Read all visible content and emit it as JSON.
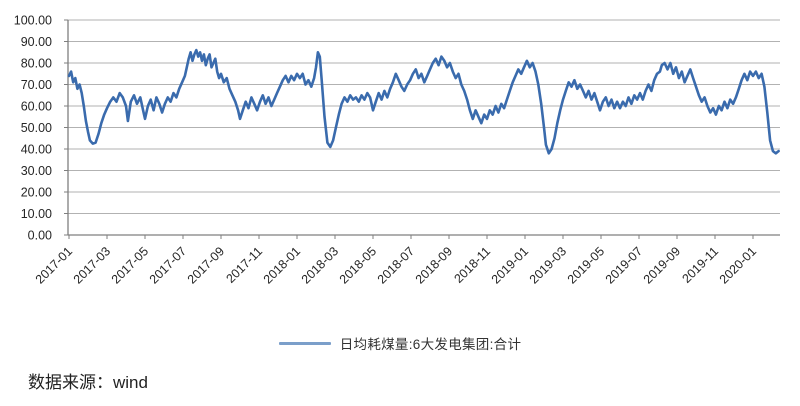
{
  "chart_data": {
    "type": "line",
    "legend": [
      "日均耗煤量:6大发电集团:合计"
    ],
    "legend_position": "bottom",
    "grid": "horizontal",
    "ylim": [
      0,
      100
    ],
    "y_ticks": [
      [
        0,
        "0.00"
      ],
      [
        10,
        "10.00"
      ],
      [
        20,
        "20.00"
      ],
      [
        30,
        "30.00"
      ],
      [
        40,
        "40.00"
      ],
      [
        50,
        "50.00"
      ],
      [
        60,
        "60.00"
      ],
      [
        70,
        "70.00"
      ],
      [
        80,
        "80.00"
      ],
      [
        90,
        "90.00"
      ],
      [
        100,
        "100.00"
      ]
    ],
    "x_unit": "months since 2017-01",
    "x_ticks": [
      [
        0,
        "2017-01"
      ],
      [
        2,
        "2017-03"
      ],
      [
        4,
        "2017-05"
      ],
      [
        6,
        "2017-07"
      ],
      [
        8,
        "2017-09"
      ],
      [
        10,
        "2017-11"
      ],
      [
        12,
        "2018-01"
      ],
      [
        14,
        "2018-03"
      ],
      [
        16,
        "2018-05"
      ],
      [
        18,
        "2018-07"
      ],
      [
        20,
        "2018-09"
      ],
      [
        22,
        "2018-11"
      ],
      [
        24,
        "2019-01"
      ],
      [
        26,
        "2019-03"
      ],
      [
        28,
        "2019-05"
      ],
      [
        30,
        "2019-07"
      ],
      [
        32,
        "2019-09"
      ],
      [
        34,
        "2019-11"
      ],
      [
        36,
        "2020-01"
      ]
    ],
    "colors": {
      "line": "#3a6bad",
      "legend_swatch": "#7b9fca",
      "grid": "#b2b2b2",
      "axis": "#7f7f7f",
      "text": "#262626"
    },
    "series": [
      {
        "name": "日均耗煤量:6大发电集团:合计",
        "color": "#3a6bad",
        "points": [
          [
            0,
            74
          ],
          [
            0.11,
            76
          ],
          [
            0.22,
            71
          ],
          [
            0.33,
            73
          ],
          [
            0.44,
            68
          ],
          [
            0.56,
            70
          ],
          [
            0.67,
            66
          ],
          [
            0.78,
            60
          ],
          [
            0.89,
            53
          ],
          [
            1,
            48
          ],
          [
            1.1,
            44
          ],
          [
            1.25,
            42.5
          ],
          [
            1.4,
            43
          ],
          [
            1.55,
            47
          ],
          [
            1.7,
            52
          ],
          [
            1.85,
            56
          ],
          [
            2,
            59
          ],
          [
            2.17,
            62
          ],
          [
            2.33,
            64
          ],
          [
            2.5,
            62
          ],
          [
            2.67,
            66
          ],
          [
            2.83,
            64
          ],
          [
            3,
            60
          ],
          [
            3.1,
            53
          ],
          [
            3.25,
            62
          ],
          [
            3.42,
            65
          ],
          [
            3.58,
            61
          ],
          [
            3.75,
            64
          ],
          [
            3.9,
            58
          ],
          [
            4,
            54
          ],
          [
            4.15,
            60
          ],
          [
            4.3,
            63
          ],
          [
            4.45,
            58
          ],
          [
            4.6,
            64
          ],
          [
            4.75,
            61
          ],
          [
            4.9,
            57
          ],
          [
            5.05,
            61
          ],
          [
            5.2,
            64
          ],
          [
            5.35,
            62
          ],
          [
            5.5,
            66
          ],
          [
            5.65,
            64
          ],
          [
            5.8,
            68
          ],
          [
            5.95,
            71
          ],
          [
            6.1,
            74
          ],
          [
            6.2,
            78
          ],
          [
            6.3,
            82
          ],
          [
            6.4,
            85
          ],
          [
            6.5,
            81
          ],
          [
            6.6,
            84
          ],
          [
            6.7,
            86
          ],
          [
            6.8,
            83
          ],
          [
            6.9,
            85
          ],
          [
            7,
            81
          ],
          [
            7.1,
            84
          ],
          [
            7.2,
            79
          ],
          [
            7.3,
            82
          ],
          [
            7.4,
            84
          ],
          [
            7.5,
            78
          ],
          [
            7.6,
            80
          ],
          [
            7.7,
            82
          ],
          [
            7.8,
            76
          ],
          [
            7.9,
            73
          ],
          [
            8,
            75
          ],
          [
            8.15,
            71
          ],
          [
            8.3,
            73
          ],
          [
            8.45,
            68
          ],
          [
            8.6,
            65
          ],
          [
            8.75,
            62
          ],
          [
            8.9,
            58
          ],
          [
            9,
            54
          ],
          [
            9.15,
            58
          ],
          [
            9.3,
            62
          ],
          [
            9.45,
            59
          ],
          [
            9.6,
            64
          ],
          [
            9.75,
            61
          ],
          [
            9.9,
            58
          ],
          [
            10.05,
            62
          ],
          [
            10.2,
            65
          ],
          [
            10.35,
            61
          ],
          [
            10.5,
            64
          ],
          [
            10.65,
            60
          ],
          [
            10.8,
            63
          ],
          [
            10.95,
            66
          ],
          [
            11.1,
            69
          ],
          [
            11.25,
            72
          ],
          [
            11.4,
            74
          ],
          [
            11.55,
            71
          ],
          [
            11.7,
            74
          ],
          [
            11.85,
            72
          ],
          [
            12,
            75
          ],
          [
            12.15,
            73
          ],
          [
            12.3,
            75
          ],
          [
            12.45,
            70
          ],
          [
            12.6,
            72
          ],
          [
            12.75,
            69
          ],
          [
            12.9,
            73
          ],
          [
            13,
            78
          ],
          [
            13.1,
            85
          ],
          [
            13.2,
            83
          ],
          [
            13.3,
            72
          ],
          [
            13.45,
            55
          ],
          [
            13.6,
            43
          ],
          [
            13.75,
            41
          ],
          [
            13.9,
            44
          ],
          [
            14.05,
            50
          ],
          [
            14.2,
            56
          ],
          [
            14.35,
            61
          ],
          [
            14.5,
            64
          ],
          [
            14.65,
            62
          ],
          [
            14.8,
            65
          ],
          [
            14.95,
            63
          ],
          [
            15.1,
            64
          ],
          [
            15.25,
            62
          ],
          [
            15.4,
            65
          ],
          [
            15.55,
            63
          ],
          [
            15.7,
            66
          ],
          [
            15.85,
            64
          ],
          [
            16,
            58
          ],
          [
            16.15,
            62
          ],
          [
            16.3,
            66
          ],
          [
            16.45,
            63
          ],
          [
            16.6,
            67
          ],
          [
            16.75,
            64
          ],
          [
            16.9,
            68
          ],
          [
            17.05,
            71
          ],
          [
            17.2,
            75
          ],
          [
            17.35,
            72
          ],
          [
            17.5,
            69
          ],
          [
            17.65,
            67
          ],
          [
            17.8,
            70
          ],
          [
            17.95,
            72
          ],
          [
            18.1,
            75
          ],
          [
            18.25,
            77
          ],
          [
            18.4,
            73
          ],
          [
            18.55,
            75
          ],
          [
            18.7,
            71
          ],
          [
            18.85,
            74
          ],
          [
            19,
            77
          ],
          [
            19.15,
            80
          ],
          [
            19.3,
            82
          ],
          [
            19.45,
            79
          ],
          [
            19.6,
            83
          ],
          [
            19.75,
            81
          ],
          [
            19.9,
            78
          ],
          [
            20.05,
            80
          ],
          [
            20.2,
            76
          ],
          [
            20.35,
            73
          ],
          [
            20.5,
            75
          ],
          [
            20.65,
            70
          ],
          [
            20.8,
            67
          ],
          [
            20.95,
            63
          ],
          [
            21.1,
            58
          ],
          [
            21.25,
            54
          ],
          [
            21.4,
            58
          ],
          [
            21.55,
            55
          ],
          [
            21.7,
            52
          ],
          [
            21.85,
            56
          ],
          [
            22,
            54
          ],
          [
            22.15,
            58
          ],
          [
            22.3,
            56
          ],
          [
            22.45,
            60
          ],
          [
            22.6,
            57
          ],
          [
            22.75,
            61
          ],
          [
            22.9,
            59
          ],
          [
            23.05,
            63
          ],
          [
            23.2,
            67
          ],
          [
            23.35,
            71
          ],
          [
            23.5,
            74
          ],
          [
            23.65,
            77
          ],
          [
            23.8,
            75
          ],
          [
            23.95,
            78
          ],
          [
            24.1,
            81
          ],
          [
            24.25,
            78
          ],
          [
            24.4,
            80
          ],
          [
            24.55,
            76
          ],
          [
            24.7,
            70
          ],
          [
            24.85,
            61
          ],
          [
            25,
            50
          ],
          [
            25.1,
            42
          ],
          [
            25.25,
            38
          ],
          [
            25.4,
            40
          ],
          [
            25.55,
            45
          ],
          [
            25.7,
            52
          ],
          [
            25.85,
            58
          ],
          [
            26,
            63
          ],
          [
            26.15,
            67
          ],
          [
            26.3,
            71
          ],
          [
            26.45,
            69
          ],
          [
            26.6,
            72
          ],
          [
            26.75,
            68
          ],
          [
            26.9,
            70
          ],
          [
            27.05,
            67
          ],
          [
            27.2,
            64
          ],
          [
            27.35,
            67
          ],
          [
            27.5,
            63
          ],
          [
            27.65,
            66
          ],
          [
            27.8,
            62
          ],
          [
            27.95,
            58
          ],
          [
            28.1,
            62
          ],
          [
            28.25,
            64
          ],
          [
            28.4,
            60
          ],
          [
            28.55,
            63
          ],
          [
            28.7,
            59
          ],
          [
            28.85,
            62
          ],
          [
            29,
            59
          ],
          [
            29.15,
            62
          ],
          [
            29.3,
            60
          ],
          [
            29.45,
            64
          ],
          [
            29.6,
            61
          ],
          [
            29.75,
            65
          ],
          [
            29.9,
            63
          ],
          [
            30.05,
            66
          ],
          [
            30.2,
            63
          ],
          [
            30.35,
            67
          ],
          [
            30.5,
            70
          ],
          [
            30.65,
            67
          ],
          [
            30.8,
            72
          ],
          [
            30.95,
            75
          ],
          [
            31.1,
            76
          ],
          [
            31.2,
            79
          ],
          [
            31.35,
            80
          ],
          [
            31.5,
            77
          ],
          [
            31.65,
            80
          ],
          [
            31.8,
            75
          ],
          [
            31.95,
            78
          ],
          [
            32.1,
            73
          ],
          [
            32.25,
            76
          ],
          [
            32.4,
            71
          ],
          [
            32.55,
            74
          ],
          [
            32.7,
            77
          ],
          [
            32.85,
            73
          ],
          [
            33,
            69
          ],
          [
            33.15,
            65
          ],
          [
            33.3,
            62
          ],
          [
            33.45,
            64
          ],
          [
            33.6,
            60
          ],
          [
            33.75,
            57
          ],
          [
            33.9,
            59
          ],
          [
            34.05,
            56
          ],
          [
            34.2,
            60
          ],
          [
            34.35,
            58
          ],
          [
            34.5,
            62
          ],
          [
            34.65,
            59
          ],
          [
            34.8,
            63
          ],
          [
            34.95,
            61
          ],
          [
            35.1,
            64
          ],
          [
            35.25,
            68
          ],
          [
            35.4,
            72
          ],
          [
            35.55,
            75
          ],
          [
            35.7,
            72
          ],
          [
            35.85,
            76
          ],
          [
            36,
            74
          ],
          [
            36.15,
            76
          ],
          [
            36.3,
            73
          ],
          [
            36.45,
            75
          ],
          [
            36.6,
            69
          ],
          [
            36.75,
            57
          ],
          [
            36.9,
            44
          ],
          [
            37.05,
            39
          ],
          [
            37.2,
            38
          ],
          [
            37.35,
            39
          ]
        ]
      }
    ]
  },
  "footer": {
    "source": "数据来源：wind"
  }
}
